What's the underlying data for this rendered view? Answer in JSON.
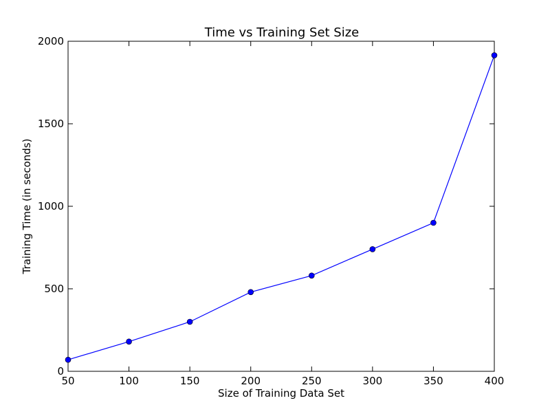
{
  "chart_data": {
    "type": "line",
    "title": "Time vs Training Set Size",
    "xlabel": "Size of Training Data Set",
    "ylabel": "Training Time (in seconds)",
    "xlim": [
      50,
      400
    ],
    "ylim": [
      0,
      2000
    ],
    "xticks": [
      50,
      100,
      150,
      200,
      250,
      300,
      350,
      400
    ],
    "yticks": [
      0,
      500,
      1000,
      1500,
      2000
    ],
    "grid": false,
    "series": [
      {
        "color": "#0000ff",
        "marker": "circle",
        "x": [
          50,
          100,
          150,
          200,
          250,
          300,
          350,
          400
        ],
        "y": [
          70,
          180,
          300,
          480,
          580,
          740,
          900,
          1915
        ]
      }
    ]
  }
}
